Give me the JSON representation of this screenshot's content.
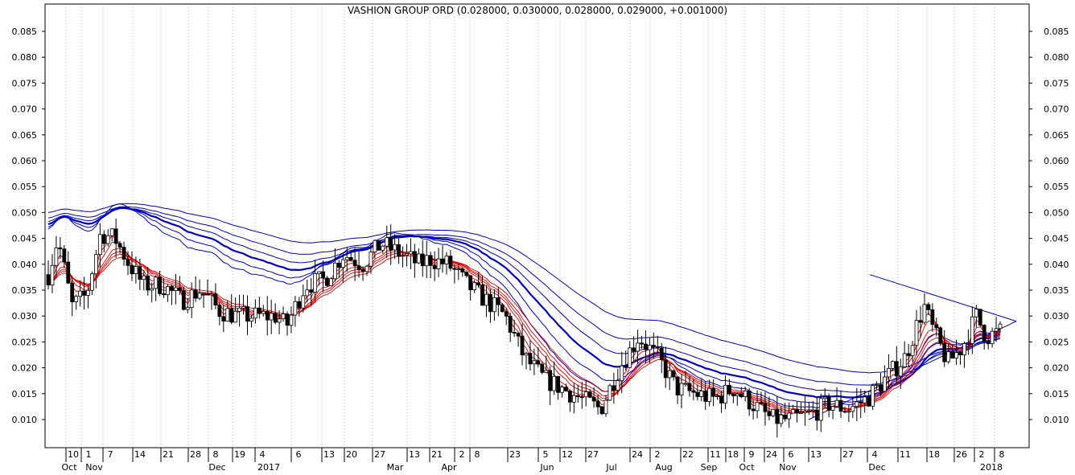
{
  "chart_data": {
    "type": "candlestick",
    "title": "VASHION GROUP ORD (0.028000, 0.030000, 0.028000, 0.029000, +0.001000)",
    "ylim": [
      0.005,
      0.09
    ],
    "yticks": [
      "0.085",
      "0.080",
      "0.075",
      "0.070",
      "0.065",
      "0.060",
      "0.055",
      "0.050",
      "0.045",
      "0.040",
      "0.035",
      "0.030",
      "0.025",
      "0.020",
      "0.015",
      "0.010"
    ],
    "x_day_labels": [
      "10",
      "1",
      "7",
      "14",
      "21",
      "28",
      "8",
      "19",
      "4",
      "6",
      "13",
      "20",
      "27",
      "13",
      "21",
      "2",
      "8",
      "23",
      "5",
      "12",
      "27",
      "24",
      "2",
      "22",
      "11",
      "18",
      "9",
      "24",
      "6",
      "13",
      "27",
      "4",
      "11",
      "18",
      "26",
      "2",
      "8"
    ],
    "x_month_labels": [
      "Oct",
      "Nov",
      "Dec",
      "2017",
      "Mar",
      "Apr",
      "Jun",
      "Jul",
      "Aug",
      "Sep",
      "Oct",
      "Nov",
      "Dec",
      "2018"
    ],
    "grid": true,
    "colors": {
      "candle": "#000000",
      "short_ema": "#e00000",
      "long_ema": "#0000c0",
      "trendline": "#0000c0"
    },
    "moving_average_groups": [
      {
        "name": "short-term",
        "color": "#e00000"
      },
      {
        "name": "long-term",
        "color": "#0000c0"
      }
    ]
  }
}
